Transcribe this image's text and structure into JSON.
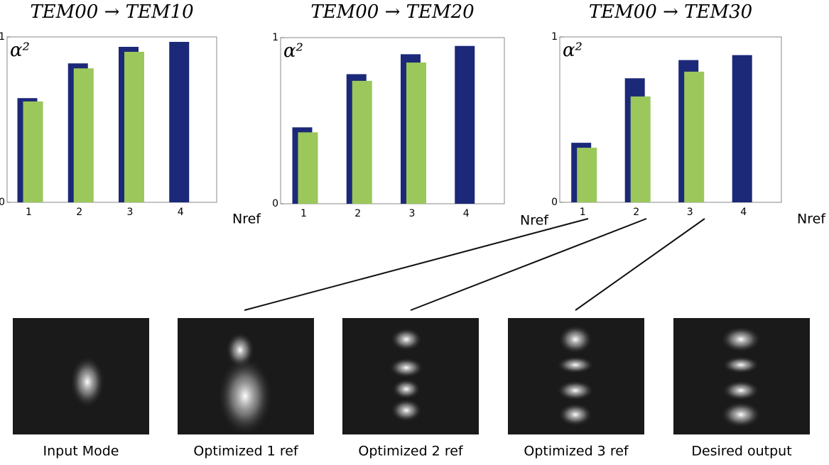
{
  "chart_data": [
    {
      "type": "bar",
      "title": "TEM00 → TEM10",
      "y_label": "α²",
      "x_label": "Nref",
      "categories": [
        "1",
        "2",
        "3",
        "4"
      ],
      "ylim": [
        0,
        1
      ],
      "yticks": [
        0,
        1
      ],
      "series": [
        {
          "color": "#1c2878",
          "values": [
            0.63,
            0.84,
            0.94,
            0.97
          ]
        },
        {
          "color": "#9bc75b",
          "values": [
            0.61,
            0.81,
            0.91,
            null
          ]
        }
      ]
    },
    {
      "type": "bar",
      "title": "TEM00 → TEM20",
      "y_label": "α²",
      "x_label": "Nref",
      "categories": [
        "1",
        "2",
        "3",
        "4"
      ],
      "ylim": [
        0,
        1
      ],
      "yticks": [
        0,
        1
      ],
      "series": [
        {
          "color": "#1c2878",
          "values": [
            0.46,
            0.78,
            0.9,
            0.95
          ]
        },
        {
          "color": "#9bc75b",
          "values": [
            0.43,
            0.74,
            0.85,
            null
          ]
        }
      ]
    },
    {
      "type": "bar",
      "title": "TEM00 → TEM30",
      "y_label": "α²",
      "x_label": "Nref",
      "categories": [
        "1",
        "2",
        "3",
        "4"
      ],
      "ylim": [
        0,
        1
      ],
      "yticks": [
        0,
        1
      ],
      "series": [
        {
          "color": "#1c2878",
          "values": [
            0.36,
            0.75,
            0.86,
            0.89
          ]
        },
        {
          "color": "#9bc75b",
          "values": [
            0.33,
            0.64,
            0.79,
            null
          ]
        }
      ]
    }
  ],
  "images": [
    {
      "caption": "Input Mode"
    },
    {
      "caption": "Optimized 1 ref"
    },
    {
      "caption": "Optimized 2 ref"
    },
    {
      "caption": "Optimized 3 ref"
    },
    {
      "caption": "Desired output"
    }
  ]
}
